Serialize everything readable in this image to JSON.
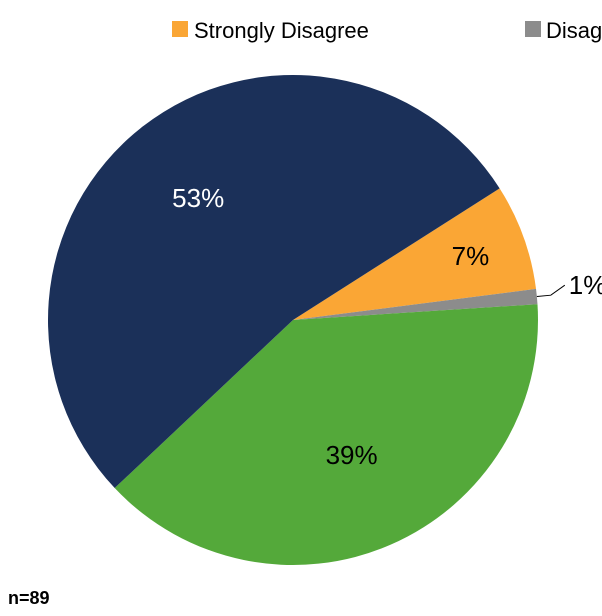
{
  "chart_data": {
    "type": "pie",
    "legend_position": "top",
    "slices": [
      {
        "name": "Strongly Disagree",
        "value": 7,
        "label": "7%",
        "color": "#FAA635",
        "label_color": "#000000"
      },
      {
        "name": "Disagree",
        "value": 1,
        "label": "1%",
        "color": "#8C8C8C",
        "label_color": "#000000"
      },
      {
        "name": "",
        "value": 39,
        "label": "39%",
        "color": "#54A93A",
        "label_color": "#000000"
      },
      {
        "name": "",
        "value": 53,
        "label": "53%",
        "color": "#1B3059",
        "label_color": "#ffffff"
      }
    ]
  },
  "legend": {
    "items": [
      {
        "label": "Strongly Disagree",
        "color": "#FAA635"
      },
      {
        "label": "Disagree",
        "color": "#8C8C8C"
      }
    ]
  },
  "footnote": "n=89"
}
